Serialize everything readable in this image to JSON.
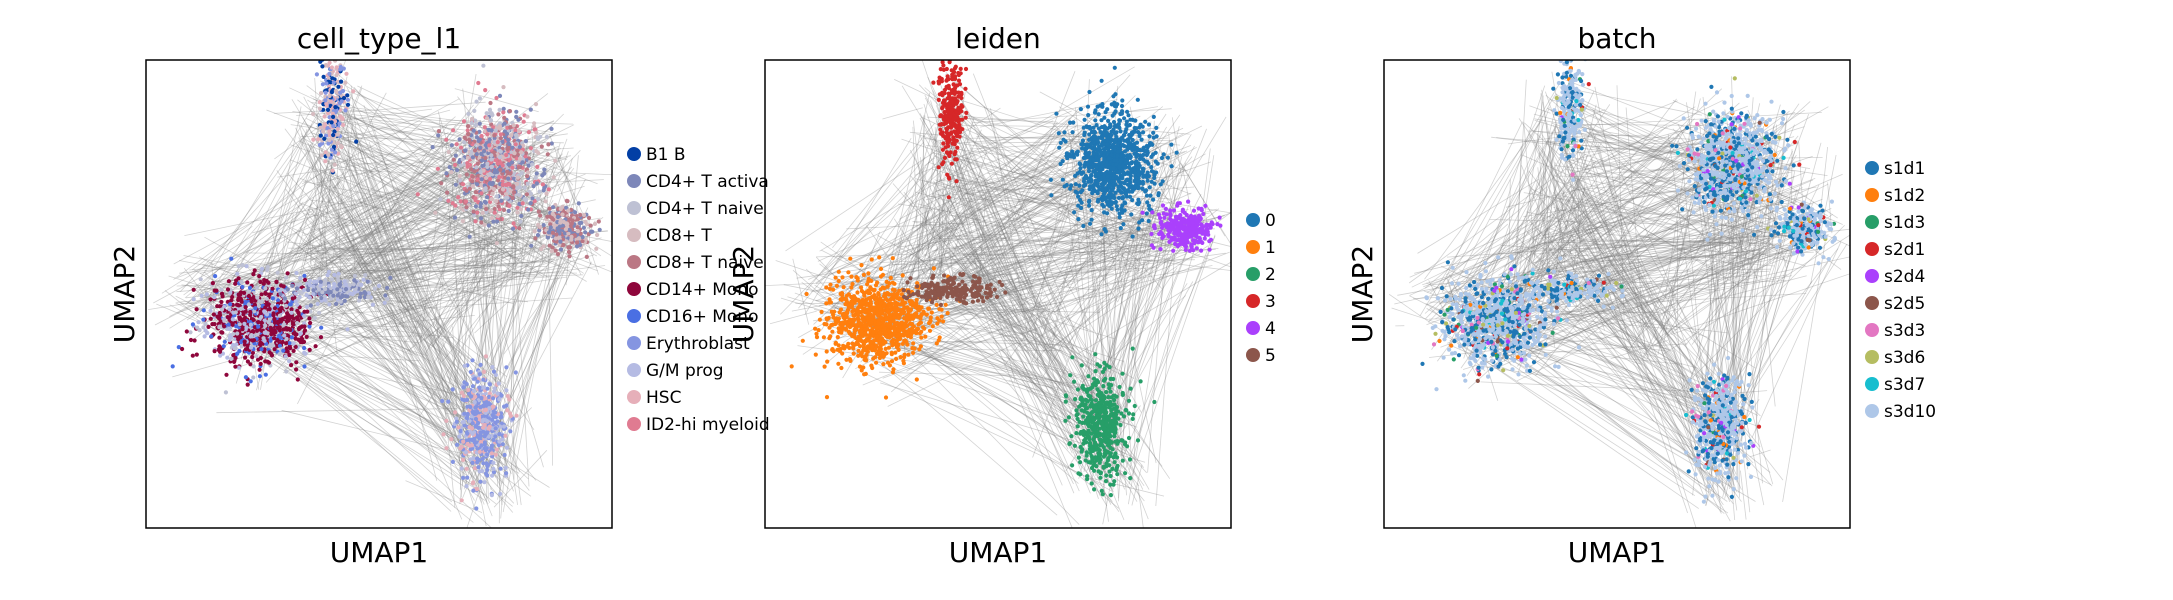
{
  "chart_data": [
    {
      "type": "scatter",
      "title": "cell_type_l1",
      "xlabel": "UMAP1",
      "ylabel": "UMAP2",
      "legend_position": "right",
      "legend": [
        {
          "label": "B1 B",
          "color": "#023fa5"
        },
        {
          "label": "CD4+ T activa",
          "color": "#7d87b9"
        },
        {
          "label": "CD4+ T naive",
          "color": "#bec1d4"
        },
        {
          "label": "CD8+ T",
          "color": "#d6bcc0"
        },
        {
          "label": "CD8+ T naive",
          "color": "#bb7784"
        },
        {
          "label": "CD14+ Mono",
          "color": "#8e063b"
        },
        {
          "label": "CD16+ Mono",
          "color": "#4a6fe3"
        },
        {
          "label": "Erythroblast",
          "color": "#8595e1"
        },
        {
          "label": "G/M prog",
          "color": "#b5bbe3"
        },
        {
          "label": "HSC",
          "color": "#e6afb9"
        },
        {
          "label": "ID2-hi myeloid",
          "color": "#e07b91"
        }
      ]
    },
    {
      "type": "scatter",
      "title": "leiden",
      "xlabel": "UMAP1",
      "ylabel": "UMAP2",
      "legend_position": "right",
      "legend": [
        {
          "label": "0",
          "color": "#1f77b4"
        },
        {
          "label": "1",
          "color": "#ff7f0e"
        },
        {
          "label": "2",
          "color": "#279e68"
        },
        {
          "label": "3",
          "color": "#d62728"
        },
        {
          "label": "4",
          "color": "#aa40fc"
        },
        {
          "label": "5",
          "color": "#8c564b"
        }
      ]
    },
    {
      "type": "scatter",
      "title": "batch",
      "xlabel": "UMAP1",
      "ylabel": "UMAP2",
      "legend_position": "right",
      "legend": [
        {
          "label": "s1d1",
          "color": "#1f77b4"
        },
        {
          "label": "s1d2",
          "color": "#ff7f0e"
        },
        {
          "label": "s1d3",
          "color": "#279e68"
        },
        {
          "label": "s2d1",
          "color": "#d62728"
        },
        {
          "label": "s2d4",
          "color": "#aa40fc"
        },
        {
          "label": "s2d5",
          "color": "#8c564b"
        },
        {
          "label": "s3d3",
          "color": "#e377c2"
        },
        {
          "label": "s3d6",
          "color": "#b5bd61"
        },
        {
          "label": "s3d7",
          "color": "#17becf"
        },
        {
          "label": "s3d10",
          "color": "#aec7e8"
        }
      ]
    }
  ]
}
